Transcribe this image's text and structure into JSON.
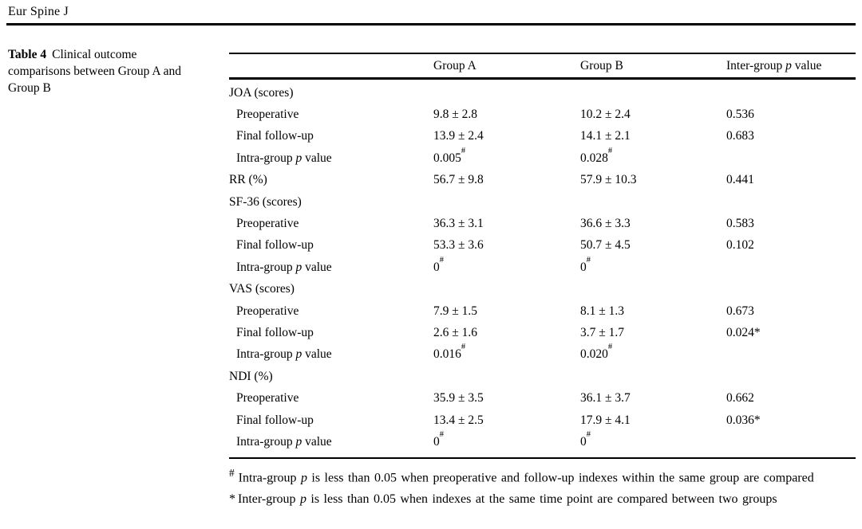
{
  "journal_header": "Eur Spine J",
  "caption": {
    "label": "Table 4",
    "text": "Clinical outcome comparisons between Group A and Group B"
  },
  "colors": {
    "text": "#000000",
    "background": "#ffffff",
    "rule": "#000000"
  },
  "table": {
    "columns": {
      "group_a": "Group A",
      "group_b": "Group B",
      "p_header": {
        "pre": "Inter-group ",
        "italic": "p",
        "post": " value"
      }
    },
    "rows": [
      {
        "type": "section",
        "label": "JOA (scores)",
        "indent": false
      },
      {
        "type": "data",
        "label": "Preoperative",
        "indent": true,
        "group_a": "9.8 ± 2.8",
        "group_b": "10.2 ± 2.4",
        "p": "0.536"
      },
      {
        "type": "data",
        "label": "Final follow-up",
        "indent": true,
        "group_a": "13.9 ± 2.4",
        "group_b": "14.1 ± 2.1",
        "p": "0.683"
      },
      {
        "type": "data",
        "label_pre": "Intra-group ",
        "label_italic": "p",
        "label_post": " value",
        "indent": true,
        "group_a": "0.005",
        "group_a_sup": "#",
        "group_b": "0.028",
        "group_b_sup": "#",
        "p": ""
      },
      {
        "type": "data",
        "label": "RR (%)",
        "indent": false,
        "group_a": "56.7 ± 9.8",
        "group_b": "57.9 ± 10.3",
        "p": "0.441"
      },
      {
        "type": "section",
        "label": "SF-36 (scores)",
        "indent": false
      },
      {
        "type": "data",
        "label": "Preoperative",
        "indent": true,
        "group_a": "36.3 ± 3.1",
        "group_b": "36.6 ± 3.3",
        "p": "0.583"
      },
      {
        "type": "data",
        "label": "Final follow-up",
        "indent": true,
        "group_a": "53.3 ± 3.6",
        "group_b": "50.7 ± 4.5",
        "p": "0.102"
      },
      {
        "type": "data",
        "label_pre": "Intra-group ",
        "label_italic": "p",
        "label_post": " value",
        "indent": true,
        "group_a": "0",
        "group_a_sup": "#",
        "group_b": "0",
        "group_b_sup": "#",
        "p": ""
      },
      {
        "type": "section",
        "label": "VAS (scores)",
        "indent": false
      },
      {
        "type": "data",
        "label": "Preoperative",
        "indent": true,
        "group_a": "7.9 ± 1.5",
        "group_b": "8.1 ± 1.3",
        "p": "0.673"
      },
      {
        "type": "data",
        "label": "Final follow-up",
        "indent": true,
        "group_a": "2.6 ± 1.6",
        "group_b": "3.7 ± 1.7",
        "p": "0.024*"
      },
      {
        "type": "data",
        "label_pre": "Intra-group ",
        "label_italic": "p",
        "label_post": " value",
        "indent": true,
        "group_a": "0.016",
        "group_a_sup": "#",
        "group_b": "0.020",
        "group_b_sup": "#",
        "p": ""
      },
      {
        "type": "section",
        "label": "NDI (%)",
        "indent": false
      },
      {
        "type": "data",
        "label": "Preoperative",
        "indent": true,
        "group_a": "35.9 ± 3.5",
        "group_b": "36.1 ± 3.7",
        "p": "0.662"
      },
      {
        "type": "data",
        "label": "Final follow-up",
        "indent": true,
        "group_a": "13.4 ± 2.5",
        "group_b": "17.9 ± 4.1",
        "p": "0.036*"
      },
      {
        "type": "data",
        "label_pre": "Intra-group ",
        "label_italic": "p",
        "label_post": " value",
        "indent": true,
        "group_a": "0",
        "group_a_sup": "#",
        "group_b": "0",
        "group_b_sup": "#",
        "p": ""
      }
    ]
  },
  "footnotes": [
    {
      "marker": "#",
      "pre": "Intra-group ",
      "italic": "p",
      "post": " is less than 0.05 when preoperative and follow-up indexes within the same group are compared"
    },
    {
      "marker": "*",
      "pre": "Inter-group ",
      "italic": "p",
      "post": " is less than 0.05 when indexes at the same time point are compared between two groups"
    }
  ]
}
